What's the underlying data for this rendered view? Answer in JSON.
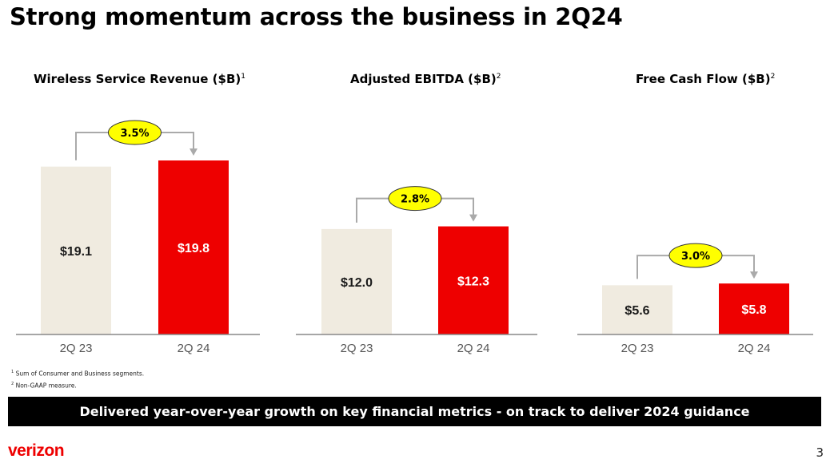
{
  "header": {
    "title": "Strong momentum across the business in 2Q24"
  },
  "chart_titles": [
    {
      "text": "Wireless Service Revenue ($B)",
      "sup": "1"
    },
    {
      "text": "Adjusted EBITDA ($B)",
      "sup": "2"
    },
    {
      "text": "Free Cash Flow ($B)",
      "sup": "2"
    }
  ],
  "chart_data": [
    {
      "type": "bar",
      "title": "Wireless Service Revenue ($B)",
      "categories": [
        "2Q 23",
        "2Q 24"
      ],
      "values": [
        19.1,
        19.8
      ],
      "labels": [
        "$19.1",
        "$19.8"
      ],
      "growth": "3.5%",
      "colors": [
        "#f0ebe0",
        "#ee0000"
      ]
    },
    {
      "type": "bar",
      "title": "Adjusted EBITDA ($B)",
      "categories": [
        "2Q 23",
        "2Q 24"
      ],
      "values": [
        12.0,
        12.3
      ],
      "labels": [
        "$12.0",
        "$12.3"
      ],
      "growth": "2.8%",
      "colors": [
        "#f0ebe0",
        "#ee0000"
      ]
    },
    {
      "type": "bar",
      "title": "Free Cash Flow ($B)",
      "categories": [
        "2Q 23",
        "2Q 24"
      ],
      "values": [
        5.6,
        5.8
      ],
      "labels": [
        "$5.6",
        "$5.8"
      ],
      "growth": "3.0%",
      "colors": [
        "#f0ebe0",
        "#ee0000"
      ]
    }
  ],
  "footnotes": [
    {
      "sup": "1",
      "text": "Sum of Consumer and Business segments."
    },
    {
      "sup": "2",
      "text": "Non-GAAP measure."
    }
  ],
  "banner": {
    "text": "Delivered year-over-year growth on key financial metrics - on track to deliver 2024 guidance"
  },
  "footer": {
    "logo": "verizon",
    "page_number": "3"
  },
  "colors": {
    "accent": "#ee0000",
    "prior_bar": "#f0ebe0",
    "growth_badge": "#ffff00"
  }
}
